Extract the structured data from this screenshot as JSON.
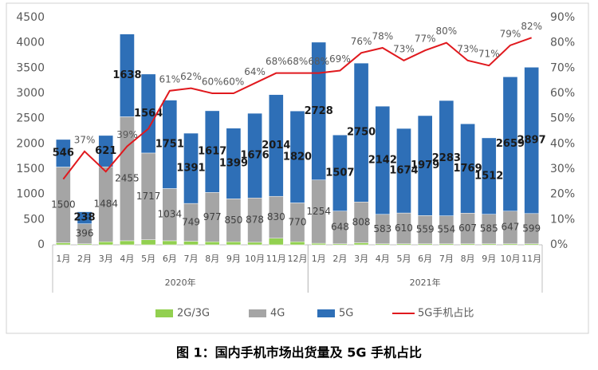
{
  "chart_data": {
    "type": "bar",
    "title": "图 1：国内手机市场出货量及 5G 手机占比",
    "groups": [
      {
        "name": "2020年",
        "categories": [
          "1月",
          "2月",
          "3月",
          "4月",
          "5月",
          "6月",
          "7月",
          "8月",
          "9月",
          "10月",
          "11月",
          "12月"
        ]
      },
      {
        "name": "2021年",
        "categories": [
          "1月",
          "2月",
          "3月",
          "4月",
          "5月",
          "6月",
          "7月",
          "8月",
          "9月",
          "10月",
          "11月"
        ]
      }
    ],
    "series": [
      {
        "name": "2G/3G",
        "color": "#92d050",
        "labels": false,
        "values": [
          40,
          20,
          60,
          80,
          100,
          80,
          70,
          60,
          60,
          50,
          130,
          60,
          30,
          20,
          40,
          20,
          20,
          20,
          20,
          20,
          20,
          20,
          20
        ]
      },
      {
        "name": "4G",
        "color": "#a5a5a5",
        "labels": true,
        "values": [
          1500,
          396,
          1484,
          2455,
          1717,
          1034,
          749,
          977,
          850,
          878,
          830,
          770,
          1254,
          648,
          808,
          583,
          610,
          559,
          554,
          607,
          585,
          647,
          599
        ]
      },
      {
        "name": "5G",
        "color": "#2e6fb7",
        "labels": true,
        "values": [
          546,
          238,
          621,
          1638,
          1564,
          1751,
          1391,
          1617,
          1399,
          1676,
          2014,
          1820,
          2728,
          1507,
          2750,
          2142,
          1674,
          1979,
          2283,
          1769,
          1512,
          2659,
          2897
        ]
      },
      {
        "name": "5G手机占比",
        "type": "line",
        "axis": "y2",
        "color": "#e0191e",
        "values": [
          26,
          37,
          29,
          39,
          46,
          61,
          62,
          60,
          60,
          64,
          68,
          68,
          68,
          69,
          76,
          78,
          73,
          77,
          80,
          73,
          71,
          79,
          82
        ],
        "value_labels": [
          null,
          "37%",
          null,
          "39%",
          null,
          "61%",
          "62%",
          "60%",
          "60%",
          "64%",
          "68%",
          "68%",
          "68%",
          "69%",
          "76%",
          "78%",
          "73%",
          "77%",
          "80%",
          "73%",
          "71%",
          "79%",
          "82%"
        ]
      }
    ],
    "ylim": [
      0,
      4500
    ],
    "yticks": [
      0,
      500,
      1000,
      1500,
      2000,
      2500,
      3000,
      3500,
      4000,
      4500
    ],
    "y2lim": [
      0,
      90
    ],
    "y2ticks": [
      {
        "value": 0,
        "label": "0%"
      },
      {
        "value": 10,
        "label": "10%"
      },
      {
        "value": 20,
        "label": "20%"
      },
      {
        "value": 30,
        "label": "30%"
      },
      {
        "value": 40,
        "label": "40%"
      },
      {
        "value": 50,
        "label": "50%"
      },
      {
        "value": 60,
        "label": "60%"
      },
      {
        "value": 70,
        "label": "70%"
      },
      {
        "value": 80,
        "label": "80%"
      },
      {
        "value": 90,
        "label": "90%"
      }
    ],
    "grid": false
  }
}
